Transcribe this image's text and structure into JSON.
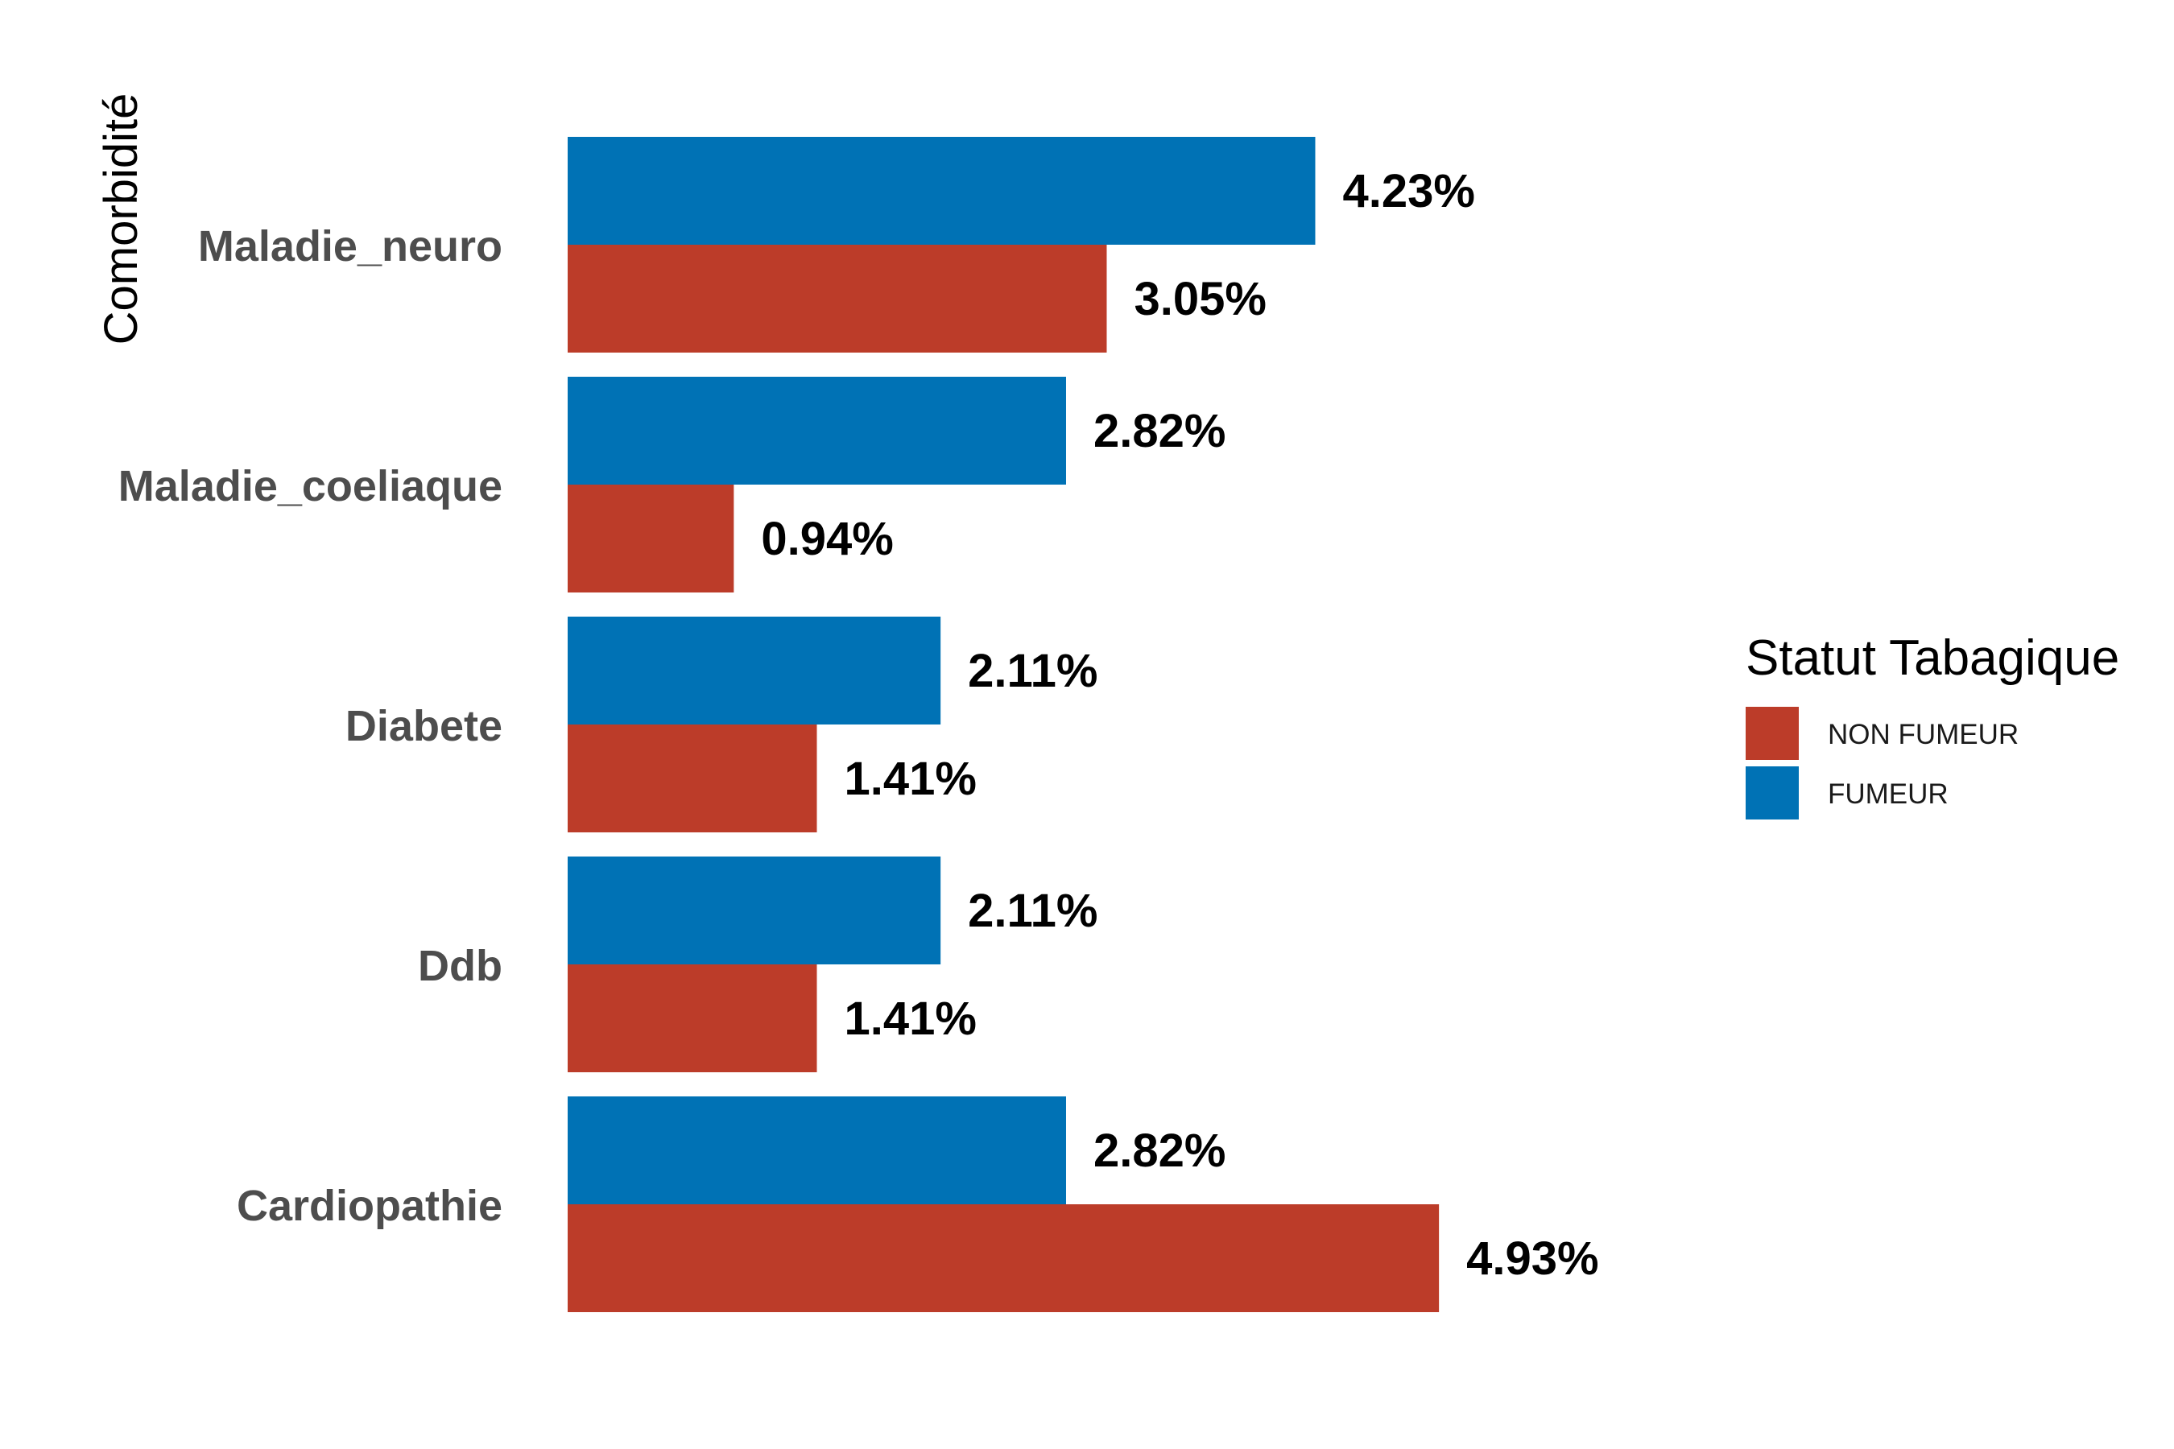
{
  "chart_data": {
    "type": "bar",
    "orientation": "horizontal",
    "title": "",
    "xlabel": "",
    "ylabel": "Comorbidité",
    "categories": [
      "Maladie_neuro",
      "Maladie_coeliaque",
      "Diabete",
      "Ddb",
      "Cardiopathie"
    ],
    "series": [
      {
        "name": "FUMEUR",
        "color": "#0072B5",
        "values": [
          4.23,
          2.82,
          2.11,
          2.11,
          2.82
        ],
        "labels": [
          "4.23%",
          "2.82%",
          "2.11%",
          "2.11%",
          "2.82%"
        ]
      },
      {
        "name": "NON FUMEUR",
        "color": "#BC3C29",
        "values": [
          3.05,
          0.94,
          1.41,
          1.41,
          4.93
        ],
        "labels": [
          "3.05%",
          "0.94%",
          "1.41%",
          "1.41%",
          "4.93%"
        ]
      }
    ],
    "xlim": [
      0,
      5
    ],
    "grid": false,
    "legend": {
      "title": "Statut Tabagique",
      "position": "right",
      "entries": [
        {
          "label": "NON FUMEUR",
          "color": "#BC3C29"
        },
        {
          "label": "FUMEUR",
          "color": "#0072B5"
        }
      ]
    }
  }
}
